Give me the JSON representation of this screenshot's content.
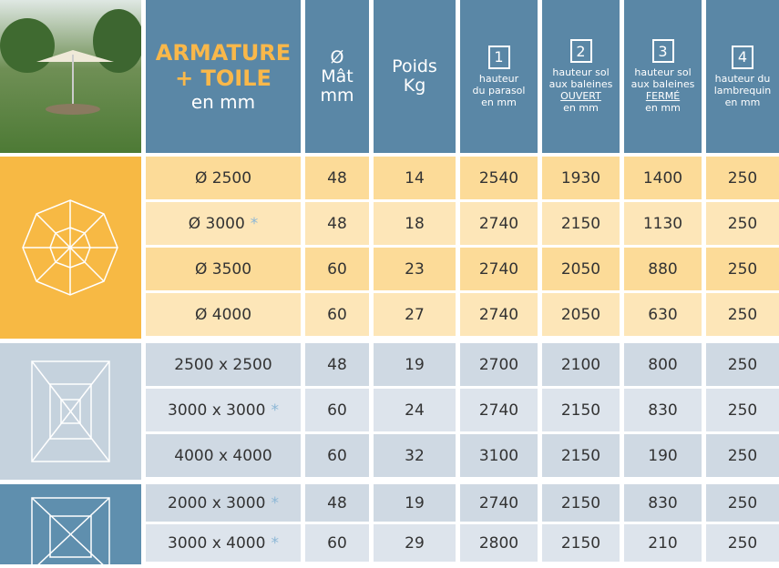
{
  "header": {
    "columns": [
      {
        "lines": [
          "ARMATURE",
          "+ TOILE",
          "en mm"
        ]
      },
      {
        "lines": [
          "Ø",
          "Mât",
          "mm"
        ]
      },
      {
        "lines": [
          "Poids",
          "Kg"
        ]
      },
      {
        "number": "1",
        "lines": [
          "hauteur",
          "du parasol",
          "en mm"
        ]
      },
      {
        "number": "2",
        "lines": [
          "hauteur sol",
          "aux baleines",
          "OUVERT",
          "en mm"
        ]
      },
      {
        "number": "3",
        "lines": [
          "hauteur sol",
          "aux baleines",
          "FERMÉ",
          "en mm"
        ]
      },
      {
        "number": "4",
        "lines": [
          "hauteur du",
          "lambrequin",
          "en mm"
        ]
      }
    ]
  },
  "groups": [
    {
      "rows": [
        {
          "cells": [
            "Ø 2500",
            48,
            14,
            2540,
            1930,
            1400,
            250
          ]
        },
        {
          "cells": [
            "Ø 3000",
            48,
            18,
            2740,
            2150,
            1130,
            250
          ],
          "note": "*"
        },
        {
          "cells": [
            "Ø 3500",
            60,
            23,
            2740,
            2050,
            880,
            250
          ]
        },
        {
          "cells": [
            "Ø 4000",
            60,
            27,
            2740,
            2050,
            630,
            250
          ]
        }
      ]
    },
    {
      "rows": [
        {
          "cells": [
            "2500 x 2500",
            48,
            19,
            2700,
            2100,
            800,
            250
          ]
        },
        {
          "cells": [
            "3000 x 3000",
            60,
            24,
            2740,
            2150,
            830,
            250
          ],
          "note": "*"
        },
        {
          "cells": [
            "4000 x 4000",
            60,
            32,
            3100,
            2150,
            190,
            250
          ]
        }
      ]
    },
    {
      "rows": [
        {
          "cells": [
            "2000 x 3000",
            48,
            19,
            2740,
            2150,
            830,
            250
          ],
          "note": "*"
        },
        {
          "cells": [
            "3000 x 4000",
            60,
            29,
            2800,
            2150,
            210,
            250
          ],
          "note": "*"
        }
      ]
    }
  ]
}
